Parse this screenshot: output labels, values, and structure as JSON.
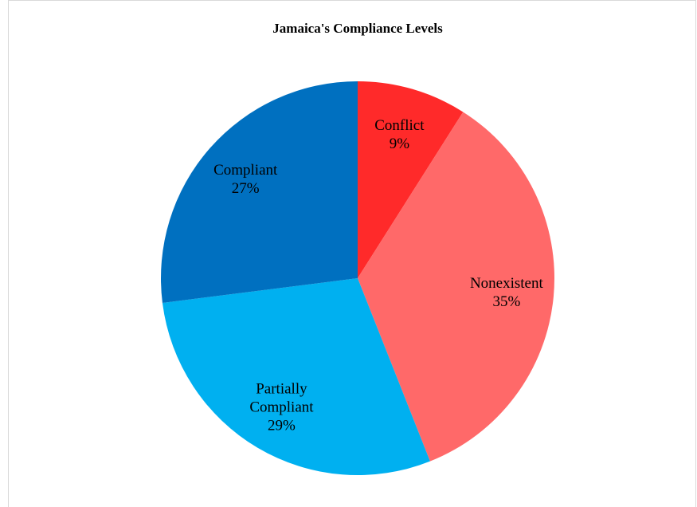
{
  "chart_data": {
    "type": "pie",
    "title": "Jamaica's Compliance Levels",
    "categories": [
      "Conflict",
      "Nonexistent",
      "Partially Compliant",
      "Compliant"
    ],
    "values": [
      9,
      35,
      29,
      27
    ],
    "value_labels": [
      "9%",
      "35%",
      "29%",
      "27%"
    ],
    "colors": [
      "#ff2a2a",
      "#ff6969",
      "#00b0f0",
      "#0070c0"
    ]
  }
}
